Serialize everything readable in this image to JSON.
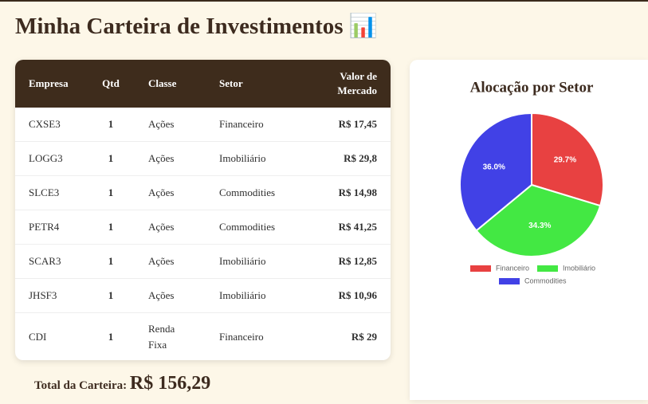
{
  "header": {
    "title": "Minha Carteira de Investimentos 📊"
  },
  "table": {
    "columns": [
      "Empresa",
      "Qtd",
      "Classe",
      "Setor",
      "Valor de Mercado"
    ],
    "rows": [
      [
        "CXSE3",
        "1",
        "Ações",
        "Financeiro",
        "R$ 17,45"
      ],
      [
        "LOGG3",
        "1",
        "Ações",
        "Imobiliário",
        "R$ 29,8"
      ],
      [
        "SLCE3",
        "1",
        "Ações",
        "Commodities",
        "R$ 14,98"
      ],
      [
        "PETR4",
        "1",
        "Ações",
        "Commodities",
        "R$ 41,25"
      ],
      [
        "SCAR3",
        "1",
        "Ações",
        "Imobiliário",
        "R$ 12,85"
      ],
      [
        "JHSF3",
        "1",
        "Ações",
        "Imobiliário",
        "R$ 10,96"
      ],
      [
        "CDI",
        "1",
        "Renda Fixa",
        "Financeiro",
        "R$ 29"
      ]
    ]
  },
  "total": {
    "label": "Total da Carteira:",
    "value": "R$ 156,29"
  },
  "chart_data": {
    "type": "pie",
    "title": "Alocação por Setor",
    "categories": [
      "Financeiro",
      "Imobiliário",
      "Commodities"
    ],
    "values": [
      29.7,
      34.3,
      36.0
    ],
    "value_labels": [
      "29.7%",
      "34.3%",
      "36.0%"
    ],
    "colors": [
      "#e84141",
      "#43e843",
      "#4141e6"
    ]
  }
}
